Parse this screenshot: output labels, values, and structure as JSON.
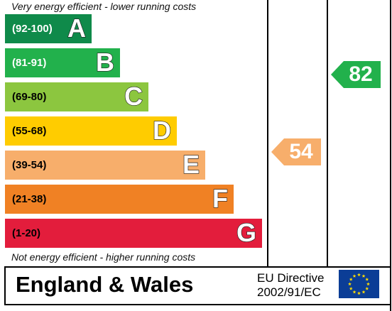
{
  "header_note": "Very energy efficient - lower running costs",
  "footer_note": "Not energy efficient - higher running costs",
  "bands": [
    {
      "range": "(92-100)",
      "letter": "A",
      "color": "#0f8a4a",
      "text_color": "#ffffff"
    },
    {
      "range": "(81-91)",
      "letter": "B",
      "color": "#22b14c",
      "text_color": "#ffffff"
    },
    {
      "range": "(69-80)",
      "letter": "C",
      "color": "#8cc63f",
      "text_color": "#000000"
    },
    {
      "range": "(55-68)",
      "letter": "D",
      "color": "#ffcc00",
      "text_color": "#000000"
    },
    {
      "range": "(39-54)",
      "letter": "E",
      "color": "#f7ae6b",
      "text_color": "#000000"
    },
    {
      "range": "(21-38)",
      "letter": "F",
      "color": "#f08124",
      "text_color": "#000000"
    },
    {
      "range": "(1-20)",
      "letter": "G",
      "color": "#e31d3c",
      "text_color": "#000000"
    }
  ],
  "current": {
    "value": "54",
    "band": "E",
    "color": "#f7ae6b"
  },
  "potential": {
    "value": "82",
    "band": "B",
    "color": "#22b14c"
  },
  "region": "England & Wales",
  "directive_line1": "EU Directive",
  "directive_line2": "2002/91/EC",
  "eu_flag": {
    "icon": "eu-flag-icon",
    "background": "#0b3d96",
    "stars": "#ffdd00"
  }
}
